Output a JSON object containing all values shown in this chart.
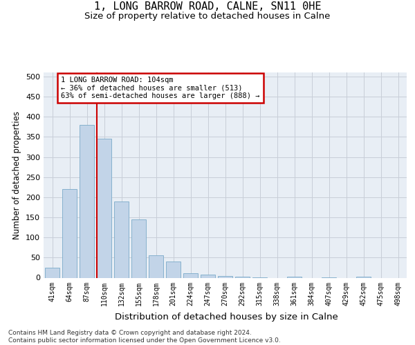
{
  "title": "1, LONG BARROW ROAD, CALNE, SN11 0HE",
  "subtitle": "Size of property relative to detached houses in Calne",
  "xlabel": "Distribution of detached houses by size in Calne",
  "ylabel": "Number of detached properties",
  "bin_labels": [
    "41sqm",
    "64sqm",
    "87sqm",
    "110sqm",
    "132sqm",
    "155sqm",
    "178sqm",
    "201sqm",
    "224sqm",
    "247sqm",
    "270sqm",
    "292sqm",
    "315sqm",
    "338sqm",
    "361sqm",
    "384sqm",
    "407sqm",
    "429sqm",
    "452sqm",
    "475sqm",
    "498sqm"
  ],
  "bar_values": [
    25,
    220,
    380,
    345,
    190,
    145,
    55,
    40,
    12,
    8,
    5,
    2,
    1,
    0,
    2,
    0,
    1,
    0,
    2,
    0,
    0
  ],
  "bar_color": "#C2D4E8",
  "bar_edge_color": "#7AAAC8",
  "red_line_index": 3,
  "annotation_line1": "1 LONG BARROW ROAD: 104sqm",
  "annotation_line2": "← 36% of detached houses are smaller (513)",
  "annotation_line3": "63% of semi-detached houses are larger (888) →",
  "ylim": [
    0,
    510
  ],
  "yticks": [
    0,
    50,
    100,
    150,
    200,
    250,
    300,
    350,
    400,
    450,
    500
  ],
  "axes_bg": "#E8EEF5",
  "grid_color": "#C8CED8",
  "footer_line1": "Contains HM Land Registry data © Crown copyright and database right 2024.",
  "footer_line2": "Contains public sector information licensed under the Open Government Licence v3.0."
}
